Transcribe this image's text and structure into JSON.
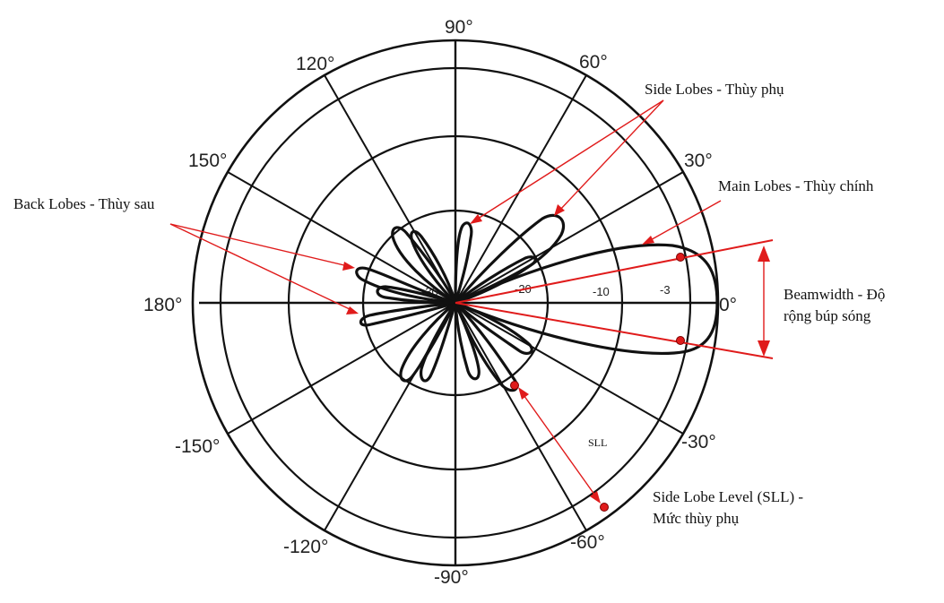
{
  "angle_labels": {
    "a0": "0°",
    "a30": "30°",
    "a60": "60°",
    "a90": "90°",
    "a120": "120°",
    "a150": "150°",
    "a180": "180°",
    "am30": "-30°",
    "am60": "-60°",
    "am90": "-90°",
    "am120": "-120°",
    "am150": "-150°"
  },
  "db_labels": {
    "d3": "-3",
    "d10": "-10",
    "d20": "-20",
    "d30": "-30"
  },
  "annotations": {
    "side_lobes": "Side Lobes - Thùy phụ",
    "main_lobes": "Main Lobes - Thùy chính",
    "back_lobes": "Back Lobes - Thùy sau",
    "beamwidth_line1": "Beamwidth - Độ",
    "beamwidth_line2": "rộng búp sóng",
    "sll_short": "SLL",
    "sll_line1": "Side Lobe Level (SLL) -",
    "sll_line2": "Mức thùy phụ"
  },
  "colors": {
    "grid": "#111111",
    "annotation": "#e01b1b"
  }
}
